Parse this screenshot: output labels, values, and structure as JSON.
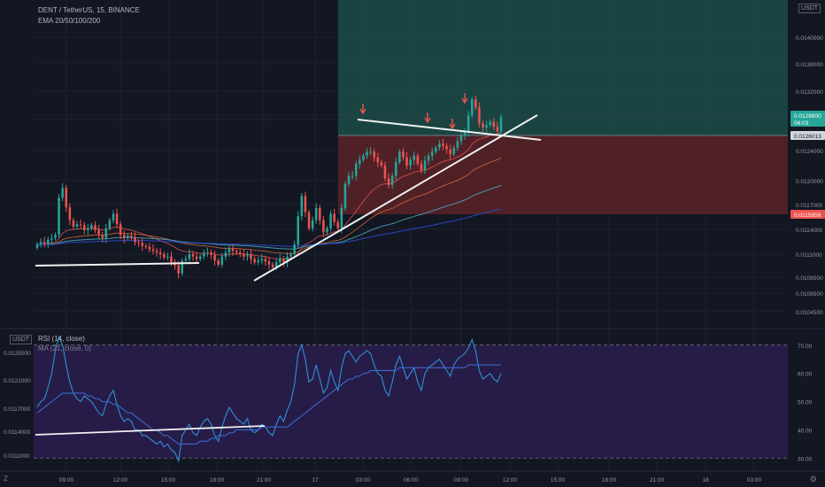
{
  "legend": {
    "symbol": "DENT / TetherUS, 15, BINANCE",
    "ema": "EMA 20/50/100/200",
    "rsi": "RSI (14, close)",
    "rsi_ma": "MA (21, close, 0)",
    "currency_top": "USDT",
    "currency_rsi": "USDT"
  },
  "icons": {
    "reset_axis": "Z",
    "settings": "gear-icon"
  },
  "colors": {
    "background": "#131722",
    "up": "#26a69a",
    "down": "#ef5350",
    "target_zone": "#1b4c48",
    "stop_zone": "#5a2328",
    "rsi_band": "#2a1d4d",
    "rsi_line": "#2e8fd6"
  },
  "chart_data": [
    {
      "type": "candlestick",
      "title": "DENT / TetherUS, 15, BINANCE",
      "price_axis_labels": [
        "0.0140000",
        "0.0138000",
        "0.0132000",
        "0.0124000",
        "0.0120000",
        "0.0117000",
        "0.0114000",
        "0.0111000",
        "0.0108500",
        "0.0106500",
        "0.0104500"
      ],
      "time_axis_labels": [
        "09:00",
        "12:00",
        "15:00",
        "18:00",
        "21:00",
        "17",
        "03:00",
        "06:00",
        "09:00",
        "12:00",
        "15:00",
        "18:00",
        "21:00",
        "18",
        "03:00"
      ],
      "price_tags": [
        {
          "label": "current",
          "value": "0.0128800",
          "countdown": "06:03",
          "color": "#26a69a"
        },
        {
          "label": "entry",
          "value": "0.0126013",
          "color": "#d1d4dc"
        },
        {
          "label": "stop",
          "value": "0.0115958",
          "color": "#ef5350"
        }
      ],
      "closes": [
        0.0113,
        0.01133,
        0.01131,
        0.01136,
        0.01138,
        0.01142,
        0.01188,
        0.012,
        0.01176,
        0.0116,
        0.01152,
        0.01155,
        0.01154,
        0.01148,
        0.0115,
        0.01154,
        0.01148,
        0.01142,
        0.01138,
        0.0115,
        0.0116,
        0.01168,
        0.01155,
        0.01142,
        0.01138,
        0.01141,
        0.01139,
        0.01133,
        0.01132,
        0.01128,
        0.01127,
        0.01124,
        0.01122,
        0.0112,
        0.01118,
        0.01114,
        0.01115,
        0.01108,
        0.01104,
        0.01094,
        0.0111,
        0.01112,
        0.01118,
        0.01115,
        0.01112,
        0.01115,
        0.01119,
        0.0112,
        0.01117,
        0.0111,
        0.01105,
        0.01115,
        0.0112,
        0.01125,
        0.01122,
        0.0112,
        0.01118,
        0.01115,
        0.01118,
        0.01112,
        0.01108,
        0.0111,
        0.01112,
        0.01109,
        0.01105,
        0.01102,
        0.01108,
        0.01112,
        0.01108,
        0.01115,
        0.01118,
        0.0113,
        0.01165,
        0.0119,
        0.0117,
        0.0115,
        0.0116,
        0.01175,
        0.0116,
        0.01145,
        0.0115,
        0.01168,
        0.01158,
        0.0115,
        0.01175,
        0.01205,
        0.01215,
        0.01215,
        0.0123,
        0.01235,
        0.0124,
        0.01245,
        0.01245,
        0.01238,
        0.01232,
        0.01228,
        0.01212,
        0.01204,
        0.01215,
        0.01232,
        0.01245,
        0.01238,
        0.01228,
        0.01235,
        0.0124,
        0.0123,
        0.01222,
        0.01234,
        0.0124,
        0.01245,
        0.0125,
        0.01255,
        0.01252,
        0.01248,
        0.01242,
        0.0125,
        0.01258,
        0.01265,
        0.0127,
        0.0129,
        0.0131,
        0.013,
        0.0128,
        0.01275,
        0.01278,
        0.01282,
        0.01276,
        0.0127,
        0.01288
      ],
      "annotations": [
        "resistance line",
        "rising trend line",
        "support line",
        "rejection arrows"
      ],
      "grid": true
    },
    {
      "type": "line",
      "title": "RSI (14, close)",
      "y_axis_labels": [
        "0.0125000",
        "0.0121000",
        "0.0117000",
        "0.0114000",
        "0.0111000"
      ],
      "right_axis_labels": [
        "70.00",
        "60.00",
        "50.00",
        "40.00",
        "30.00"
      ],
      "ylim": [
        27,
        74
      ],
      "series": [
        {
          "name": "RSI (14, close)",
          "values": [
            48,
            50,
            51,
            55,
            60,
            68,
            73,
            70,
            63,
            57,
            53,
            51,
            50,
            52,
            51,
            50,
            48,
            46,
            45,
            49,
            52,
            54,
            49,
            45,
            43,
            44,
            43,
            40,
            40,
            38,
            38,
            37,
            36,
            35,
            36,
            34,
            35,
            33,
            32,
            29,
            38,
            40,
            42,
            39,
            38,
            41,
            43,
            44,
            42,
            38,
            36,
            41,
            45,
            48,
            46,
            44,
            43,
            42,
            44,
            40,
            39,
            40,
            42,
            41,
            39,
            38,
            42,
            45,
            43,
            47,
            50,
            56,
            67,
            70,
            65,
            57,
            58,
            63,
            58,
            53,
            55,
            61,
            57,
            54,
            62,
            67,
            68,
            66,
            64,
            66,
            67,
            68,
            67,
            63,
            60,
            59,
            54,
            52,
            57,
            63,
            66,
            62,
            58,
            60,
            62,
            57,
            54,
            60,
            62,
            63,
            64,
            65,
            63,
            61,
            59,
            63,
            65,
            66,
            67,
            69,
            72,
            68,
            61,
            58,
            59,
            60,
            58,
            57,
            60
          ]
        },
        {
          "name": "MA (21, close, 0)",
          "values": [
            46,
            47,
            48,
            49,
            50,
            51,
            52,
            53,
            53,
            53,
            53,
            53,
            53,
            53,
            52,
            52,
            51,
            51,
            50,
            50,
            50,
            49,
            49,
            48,
            47,
            46,
            46,
            45,
            44,
            43,
            42,
            41,
            40,
            40,
            39,
            38,
            38,
            37,
            36,
            35,
            35,
            35,
            35,
            35,
            35,
            36,
            36,
            36,
            37,
            37,
            38,
            38,
            38,
            39,
            39,
            40,
            40,
            40,
            40,
            40,
            40,
            40,
            41,
            41,
            41,
            41,
            41,
            41,
            41,
            41,
            42,
            43,
            44,
            45,
            46,
            47,
            48,
            49,
            50,
            51,
            52,
            53,
            54,
            55,
            56,
            57,
            58,
            58,
            59,
            59,
            60,
            60,
            61,
            61,
            61,
            61,
            61,
            61,
            61,
            61,
            62,
            62,
            62,
            62,
            62,
            62,
            62,
            62,
            62,
            62,
            62,
            62,
            62,
            62,
            62,
            62,
            62,
            62,
            62,
            63,
            63,
            63,
            63,
            63,
            63,
            63,
            63,
            63,
            63
          ]
        }
      ],
      "reference_levels": [
        70,
        30
      ],
      "annotations": [
        "rising trend line"
      ]
    }
  ]
}
